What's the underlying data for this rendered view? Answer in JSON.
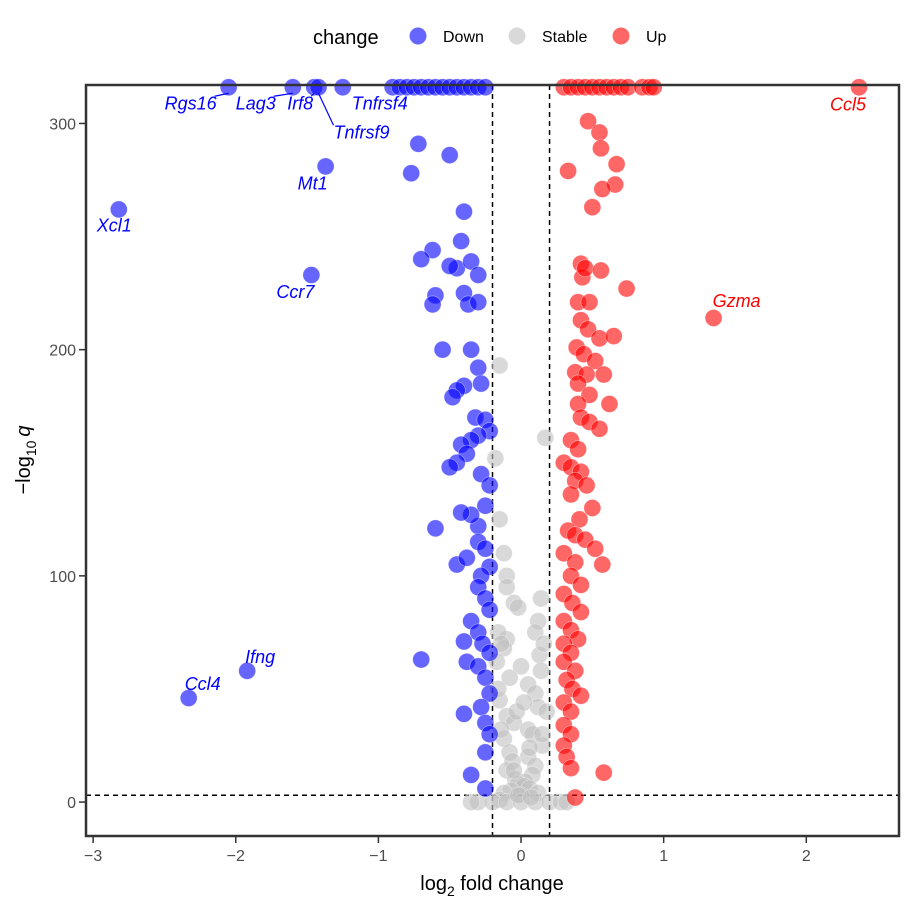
{
  "chart_data": {
    "type": "scatter",
    "title": "",
    "xlabel_main": "log",
    "xlabel_sub": "2",
    "xlabel_rest": " fold change",
    "ylabel_main": "−log",
    "ylabel_sub": "10",
    "ylabel_var": "q",
    "xlim": [
      -3.05,
      2.65
    ],
    "ylim": [
      -15,
      317
    ],
    "xticks": [
      -3,
      -2,
      -1,
      0,
      1,
      2
    ],
    "yticks": [
      0,
      100,
      200,
      300
    ],
    "xtick_labels": [
      "−3",
      "−2",
      "−1",
      "0",
      "1",
      "2"
    ],
    "ytick_labels": [
      "0",
      "100",
      "200",
      "300"
    ],
    "thresholds": {
      "x": [
        -0.2,
        0.2
      ],
      "y": 3
    },
    "legend": {
      "title": "change",
      "position": "top",
      "entries": [
        {
          "key": "Down",
          "label": "Down",
          "color": "#0000ff"
        },
        {
          "key": "Stable",
          "label": "Stable",
          "color": "#bfbfbf"
        },
        {
          "key": "Up",
          "label": "Up",
          "color": "#ff0000"
        }
      ]
    },
    "colors": {
      "Down": "#0000ff",
      "Stable": "#bfbfbf",
      "Up": "#ff0000"
    },
    "series": [
      {
        "name": "Down",
        "points": [
          [
            -2.05,
            316
          ],
          [
            -1.6,
            316
          ],
          [
            -1.45,
            316
          ],
          [
            -1.42,
            316
          ],
          [
            -1.25,
            316
          ],
          [
            -0.9,
            316
          ],
          [
            -0.85,
            316
          ],
          [
            -0.8,
            316
          ],
          [
            -0.75,
            316
          ],
          [
            -0.7,
            316
          ],
          [
            -0.65,
            316
          ],
          [
            -0.6,
            316
          ],
          [
            -0.55,
            316
          ],
          [
            -0.5,
            316
          ],
          [
            -0.45,
            316
          ],
          [
            -0.4,
            316
          ],
          [
            -0.35,
            316
          ],
          [
            -0.3,
            316
          ],
          [
            -0.25,
            316
          ],
          [
            -2.82,
            262
          ],
          [
            -1.47,
            233
          ],
          [
            -1.37,
            281
          ],
          [
            -0.72,
            291
          ],
          [
            -0.77,
            278
          ],
          [
            -0.5,
            286
          ],
          [
            -0.4,
            261
          ],
          [
            -0.62,
            244
          ],
          [
            -0.7,
            240
          ],
          [
            -0.42,
            248
          ],
          [
            -0.45,
            236
          ],
          [
            -0.5,
            237
          ],
          [
            -0.35,
            239
          ],
          [
            -0.3,
            233
          ],
          [
            -0.6,
            224
          ],
          [
            -0.62,
            220
          ],
          [
            -0.4,
            225
          ],
          [
            -0.37,
            220
          ],
          [
            -0.3,
            221
          ],
          [
            -0.55,
            200
          ],
          [
            -0.35,
            200
          ],
          [
            -0.3,
            192
          ],
          [
            -0.4,
            184
          ],
          [
            -0.45,
            182
          ],
          [
            -0.48,
            179
          ],
          [
            -0.28,
            185
          ],
          [
            -0.32,
            170
          ],
          [
            -0.25,
            169
          ],
          [
            -0.22,
            164
          ],
          [
            -0.3,
            162
          ],
          [
            -0.35,
            160
          ],
          [
            -0.42,
            158
          ],
          [
            -0.38,
            154
          ],
          [
            -0.45,
            150
          ],
          [
            -0.5,
            148
          ],
          [
            -0.28,
            145
          ],
          [
            -0.22,
            140
          ],
          [
            -0.25,
            131
          ],
          [
            -0.3,
            122
          ],
          [
            -0.35,
            127
          ],
          [
            -0.42,
            128
          ],
          [
            -0.6,
            121
          ],
          [
            -0.45,
            105
          ],
          [
            -0.38,
            108
          ],
          [
            -0.3,
            115
          ],
          [
            -0.25,
            112
          ],
          [
            -0.22,
            104
          ],
          [
            -0.28,
            100
          ],
          [
            -0.3,
            95
          ],
          [
            -0.25,
            90
          ],
          [
            -0.22,
            85
          ],
          [
            -0.35,
            80
          ],
          [
            -0.3,
            75
          ],
          [
            -0.27,
            70
          ],
          [
            -0.22,
            66
          ],
          [
            -0.4,
            71
          ],
          [
            -0.38,
            62
          ],
          [
            -0.3,
            60
          ],
          [
            -0.25,
            55
          ],
          [
            -0.22,
            48
          ],
          [
            -0.28,
            42
          ],
          [
            -0.25,
            35
          ],
          [
            -0.22,
            30
          ],
          [
            -0.4,
            39
          ],
          [
            -0.25,
            22
          ],
          [
            -0.35,
            12
          ],
          [
            -0.25,
            6
          ],
          [
            -0.7,
            63
          ],
          [
            -1.92,
            58
          ],
          [
            -2.33,
            46
          ]
        ]
      },
      {
        "name": "Up",
        "points": [
          [
            0.3,
            316
          ],
          [
            0.35,
            316
          ],
          [
            0.4,
            316
          ],
          [
            0.45,
            316
          ],
          [
            0.5,
            316
          ],
          [
            0.55,
            316
          ],
          [
            0.6,
            316
          ],
          [
            0.65,
            316
          ],
          [
            0.7,
            316
          ],
          [
            0.75,
            316
          ],
          [
            0.85,
            316
          ],
          [
            0.9,
            316
          ],
          [
            0.93,
            316
          ],
          [
            2.37,
            316
          ],
          [
            0.47,
            301
          ],
          [
            0.55,
            296
          ],
          [
            0.56,
            289
          ],
          [
            0.33,
            279
          ],
          [
            0.67,
            282
          ],
          [
            0.66,
            273
          ],
          [
            0.57,
            271
          ],
          [
            0.5,
            263
          ],
          [
            0.42,
            238
          ],
          [
            0.43,
            232
          ],
          [
            0.45,
            236
          ],
          [
            0.56,
            235
          ],
          [
            0.74,
            227
          ],
          [
            0.4,
            221
          ],
          [
            0.48,
            221
          ],
          [
            0.42,
            213
          ],
          [
            0.47,
            209
          ],
          [
            0.55,
            205
          ],
          [
            0.65,
            206
          ],
          [
            0.39,
            201
          ],
          [
            0.44,
            198
          ],
          [
            0.52,
            195
          ],
          [
            0.38,
            190
          ],
          [
            0.46,
            189
          ],
          [
            0.58,
            189
          ],
          [
            0.4,
            185
          ],
          [
            0.48,
            180
          ],
          [
            0.62,
            176
          ],
          [
            0.4,
            176
          ],
          [
            0.42,
            170
          ],
          [
            0.48,
            168
          ],
          [
            0.55,
            165
          ],
          [
            0.35,
            160
          ],
          [
            0.4,
            156
          ],
          [
            0.3,
            150
          ],
          [
            0.35,
            148
          ],
          [
            0.42,
            146
          ],
          [
            0.38,
            142
          ],
          [
            0.46,
            140
          ],
          [
            0.35,
            136
          ],
          [
            0.5,
            130
          ],
          [
            0.41,
            125
          ],
          [
            0.33,
            120
          ],
          [
            0.38,
            118
          ],
          [
            0.45,
            116
          ],
          [
            0.52,
            112
          ],
          [
            0.3,
            110
          ],
          [
            0.38,
            106
          ],
          [
            0.57,
            105
          ],
          [
            0.35,
            100
          ],
          [
            0.42,
            96
          ],
          [
            0.3,
            92
          ],
          [
            0.36,
            88
          ],
          [
            0.42,
            84
          ],
          [
            0.3,
            80
          ],
          [
            0.35,
            76
          ],
          [
            0.4,
            72
          ],
          [
            0.3,
            70
          ],
          [
            0.35,
            66
          ],
          [
            0.3,
            62
          ],
          [
            0.38,
            58
          ],
          [
            0.32,
            54
          ],
          [
            0.36,
            50
          ],
          [
            0.42,
            47
          ],
          [
            0.3,
            44
          ],
          [
            0.35,
            40
          ],
          [
            0.3,
            34
          ],
          [
            0.35,
            30
          ],
          [
            0.3,
            25
          ],
          [
            0.32,
            20
          ],
          [
            0.35,
            15
          ],
          [
            0.58,
            13
          ],
          [
            0.38,
            2
          ],
          [
            1.35,
            214
          ]
        ]
      },
      {
        "name": "Stable",
        "points": [
          [
            -0.15,
            193
          ],
          [
            0.17,
            161
          ],
          [
            -0.18,
            152
          ],
          [
            -0.15,
            125
          ],
          [
            -0.12,
            110
          ],
          [
            -0.1,
            100
          ],
          [
            -0.1,
            95
          ],
          [
            -0.05,
            88
          ],
          [
            -0.02,
            86
          ],
          [
            0.14,
            90
          ],
          [
            0.12,
            80
          ],
          [
            0.1,
            75
          ],
          [
            -0.1,
            72
          ],
          [
            -0.12,
            68
          ],
          [
            0.13,
            65
          ],
          [
            0.0,
            60
          ],
          [
            -0.08,
            55
          ],
          [
            0.05,
            52
          ],
          [
            0.1,
            48
          ],
          [
            -0.15,
            45
          ],
          [
            0.12,
            42
          ],
          [
            -0.1,
            38
          ],
          [
            -0.05,
            35
          ],
          [
            0.05,
            32
          ],
          [
            0.08,
            30
          ],
          [
            -0.12,
            28
          ],
          [
            0.15,
            25
          ],
          [
            -0.08,
            22
          ],
          [
            0.05,
            20
          ],
          [
            -0.06,
            18
          ],
          [
            0.1,
            16
          ],
          [
            -0.1,
            14
          ],
          [
            0.08,
            12
          ],
          [
            -0.04,
            10
          ],
          [
            0.03,
            9
          ],
          [
            -0.02,
            8
          ],
          [
            0.02,
            7
          ],
          [
            0.06,
            6
          ],
          [
            -0.07,
            5
          ],
          [
            -0.12,
            4
          ],
          [
            0.12,
            4
          ],
          [
            0.0,
            3
          ],
          [
            -0.15,
            1
          ],
          [
            -0.3,
            0
          ],
          [
            -0.35,
            0
          ],
          [
            -0.2,
            0
          ],
          [
            -0.1,
            0
          ],
          [
            0.0,
            0
          ],
          [
            0.1,
            0
          ],
          [
            0.2,
            0
          ],
          [
            0.28,
            0
          ],
          [
            0.32,
            0
          ],
          [
            -0.16,
            75
          ],
          [
            -0.14,
            70
          ],
          [
            0.16,
            70
          ],
          [
            0.14,
            58
          ],
          [
            -0.17,
            62
          ],
          [
            -0.16,
            50
          ],
          [
            0.18,
            40
          ],
          [
            -0.14,
            32
          ],
          [
            0.15,
            30
          ],
          [
            -0.05,
            14
          ],
          [
            0.06,
            24
          ],
          [
            -0.03,
            40
          ],
          [
            0.02,
            44
          ],
          [
            -0.02,
            3
          ],
          [
            0.07,
            2
          ]
        ]
      }
    ],
    "annotations": [
      {
        "gene": "Xcl1",
        "x": -2.82,
        "y": 262,
        "group": "Down",
        "anchor": "end",
        "dx": 13,
        "dy": 22,
        "leader": false
      },
      {
        "gene": "Ccr7",
        "x": -1.47,
        "y": 233,
        "group": "Down",
        "anchor": "end",
        "dx": 3,
        "dy": 23,
        "leader": false
      },
      {
        "gene": "Mt1",
        "x": -1.37,
        "y": 281,
        "group": "Down",
        "anchor": "end",
        "dx": 2,
        "dy": 23,
        "leader": false
      },
      {
        "gene": "Rgs16",
        "x": -2.05,
        "y": 316,
        "group": "Down",
        "anchor": "end",
        "dx": -12,
        "dy": 22,
        "leader": true
      },
      {
        "gene": "Lag3",
        "x": -1.6,
        "y": 316,
        "group": "Down",
        "anchor": "end",
        "dx": -17,
        "dy": 22,
        "leader": true
      },
      {
        "gene": "Irf8",
        "x": -1.45,
        "y": 316,
        "group": "Down",
        "anchor": "end",
        "dx": -1,
        "dy": 22,
        "leader": true
      },
      {
        "gene": "Tnfrsf9",
        "x": -1.42,
        "y": 316,
        "group": "Down",
        "anchor": "start",
        "dx": 15,
        "dy": 51,
        "leader": true
      },
      {
        "gene": "Tnfrsf4",
        "x": -1.25,
        "y": 316,
        "group": "Down",
        "anchor": "start",
        "dx": 9,
        "dy": 22,
        "leader": false
      },
      {
        "gene": "Ifng",
        "x": -1.92,
        "y": 58,
        "group": "Down",
        "anchor": "start",
        "dx": -2,
        "dy": -8,
        "leader": false
      },
      {
        "gene": "Ccl4",
        "x": -2.33,
        "y": 46,
        "group": "Down",
        "anchor": "start",
        "dx": -4,
        "dy": -8,
        "leader": false
      },
      {
        "gene": "Ccl5",
        "x": 2.37,
        "y": 316,
        "group": "Up",
        "anchor": "end",
        "dx": 7,
        "dy": 23,
        "leader": false
      },
      {
        "gene": "Gzma",
        "x": 1.35,
        "y": 214,
        "group": "Up",
        "anchor": "end",
        "dx": 47,
        "dy": -11,
        "leader": false
      }
    ]
  }
}
